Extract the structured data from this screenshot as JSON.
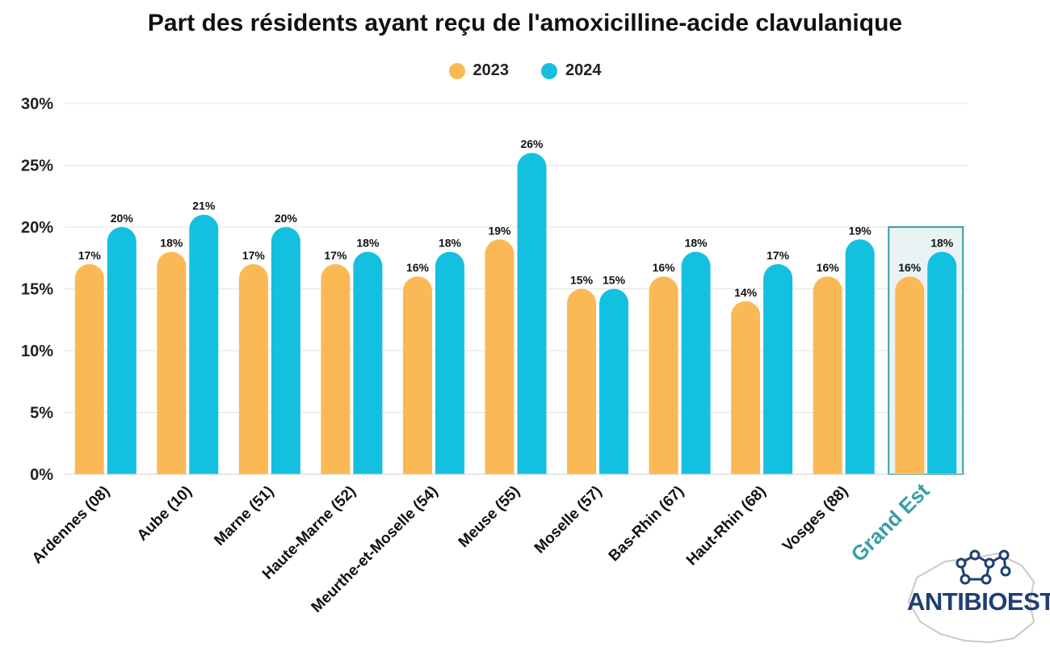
{
  "chart_data": {
    "type": "bar",
    "title": "Part des résidents ayant reçu de l'amoxicilline-acide clavulanique",
    "categories": [
      "Ardennes (08)",
      "Aube (10)",
      "Marne (51)",
      "Haute-Marne (52)",
      "Meurthe-et-Moselle (54)",
      "Meuse (55)",
      "Moselle (57)",
      "Bas-Rhin (67)",
      "Haut-Rhin (68)",
      "Vosges (88)",
      "Grand Est"
    ],
    "series": [
      {
        "name": "2023",
        "color": "#fbb955",
        "values": [
          17,
          18,
          17,
          17,
          16,
          19,
          15,
          16,
          14,
          16,
          16
        ],
        "labels": [
          "17%",
          "18%",
          "17%",
          "17%",
          "16%",
          "19%",
          "15%",
          "16%",
          "14%",
          "16%",
          "16%"
        ]
      },
      {
        "name": "2024",
        "color": "#14c0e0",
        "values": [
          20,
          21,
          20,
          18,
          18,
          26,
          15,
          18,
          17,
          19,
          18
        ],
        "labels": [
          "20%",
          "21%",
          "20%",
          "18%",
          "18%",
          "26%",
          "15%",
          "18%",
          "17%",
          "19%",
          "18%"
        ]
      }
    ],
    "ylim": [
      0,
      30
    ],
    "yticks": [
      "0%",
      "5%",
      "10%",
      "15%",
      "20%",
      "25%",
      "30%"
    ],
    "ytick_values": [
      0,
      5,
      10,
      15,
      20,
      25,
      30
    ],
    "grid": true,
    "legend_position": "top-center",
    "highlight_category": "Grand Est",
    "highlight_color": "#3a9ea5"
  },
  "logo": {
    "text": "ANTIBIOEST"
  }
}
